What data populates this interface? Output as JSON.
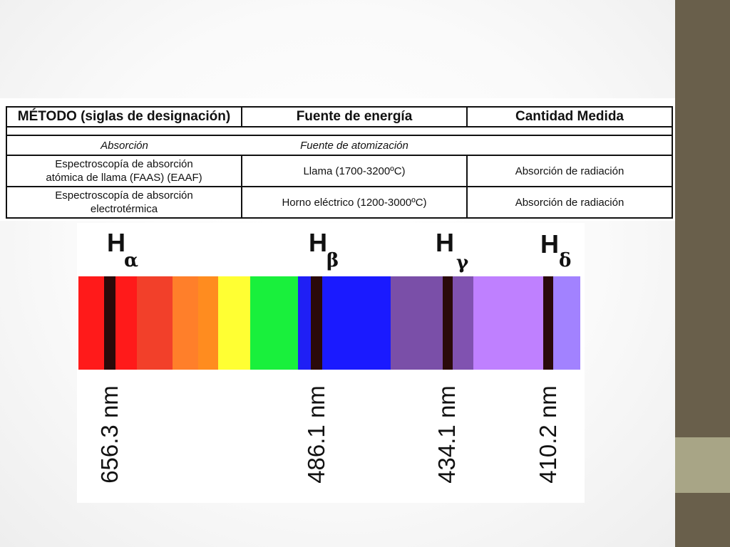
{
  "table": {
    "headers": [
      "MÉTODO (siglas de designación)",
      "Fuente de energía",
      "Cantidad Medida"
    ],
    "subheaders": [
      "Absorción",
      "Fuente de atomización",
      ""
    ],
    "rows": [
      {
        "method_line1": "Espectroscopía de absorción",
        "method_line2": "atómica de llama (FAAS) (EAAF)",
        "source": "Llama (1700-3200ºC)",
        "quantity": "Absorción de radiación"
      },
      {
        "method_line1": "Espectroscopía de absorción",
        "method_line2": "electrotérmica",
        "source": "Horno eléctrico (1200-3000ºC)",
        "quantity": "Absorción de radiación"
      }
    ]
  },
  "spectrum": {
    "lines": [
      {
        "symbol": "H",
        "sub": "α",
        "wavelength": "656.3 nm"
      },
      {
        "symbol": "H",
        "sub": "β",
        "wavelength": "486.1 nm"
      },
      {
        "symbol": "H",
        "sub": "γ",
        "wavelength": "434.1 nm"
      },
      {
        "symbol": "H",
        "sub": "δ",
        "wavelength": "410.2 nm"
      }
    ],
    "band_colors": [
      "#ff1a1a",
      "#f2402a",
      "#ff7f2a",
      "#ff8c1f",
      "#ffff33",
      "#19f03c",
      "#1f1ff5",
      "#1a1aff",
      "#7a4fa8",
      "#8052b0",
      "#bf80ff",
      "#a282ff"
    ],
    "line_color": "#2a0a0a"
  },
  "theme": {
    "side_bar": "#695f4b",
    "side_accent": "#a8a586"
  }
}
